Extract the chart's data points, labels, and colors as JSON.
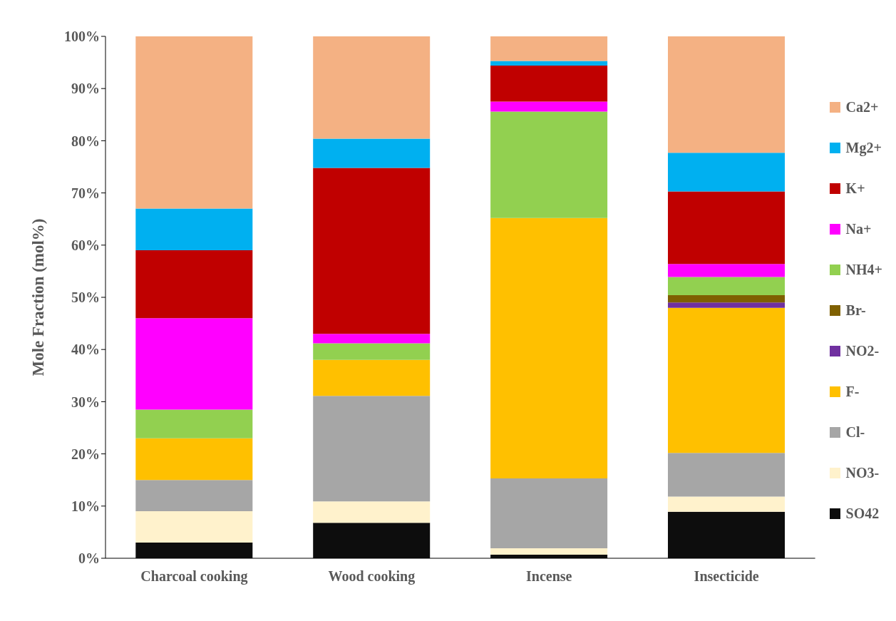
{
  "chart_data": {
    "type": "bar",
    "stacked": true,
    "ylabel": "Mole Fraction (mol%)",
    "categories": [
      "Charcoal cooking",
      "Wood cooking",
      "Incense",
      "Insecticide"
    ],
    "ylim": [
      0,
      100
    ],
    "yticks": [
      {
        "value": 0,
        "label": "0%"
      },
      {
        "value": 10,
        "label": "10%"
      },
      {
        "value": 20,
        "label": "20%"
      },
      {
        "value": 30,
        "label": "30%"
      },
      {
        "value": 40,
        "label": "40%"
      },
      {
        "value": 50,
        "label": "50%"
      },
      {
        "value": 60,
        "label": "60%"
      },
      {
        "value": 70,
        "label": "70%"
      },
      {
        "value": 80,
        "label": "80%"
      },
      {
        "value": 90,
        "label": "90%"
      },
      {
        "value": 100,
        "label": "100%"
      }
    ],
    "legend": "right",
    "grid": false,
    "series": [
      {
        "name": "SO42",
        "color": "#0d0d0d",
        "values": [
          3,
          6.8,
          0.7,
          8.9
        ]
      },
      {
        "name": "NO3-",
        "color": "#fff2cc",
        "values": [
          6,
          4.1,
          1.2,
          2.9
        ]
      },
      {
        "name": "Cl-",
        "color": "#a6a6a6",
        "values": [
          6,
          20.2,
          13.4,
          8.4
        ]
      },
      {
        "name": "F-",
        "color": "#ffc000",
        "values": [
          8,
          6.9,
          49.9,
          27.8
        ]
      },
      {
        "name": "NO2-",
        "color": "#7030a0",
        "values": [
          0,
          0,
          0,
          1
        ]
      },
      {
        "name": "Br-",
        "color": "#7f6000",
        "values": [
          0,
          0,
          0,
          1.4
        ]
      },
      {
        "name": "NH4+",
        "color": "#92d050",
        "values": [
          5.5,
          3.2,
          20.4,
          3.5
        ]
      },
      {
        "name": "Na+",
        "color": "#ff00ff",
        "values": [
          17.5,
          1.8,
          1.9,
          2.5
        ]
      },
      {
        "name": "K+",
        "color": "#c00000",
        "values": [
          13,
          31.8,
          6.9,
          13.9
        ]
      },
      {
        "name": "Mg2+",
        "color": "#00b0f0",
        "values": [
          8,
          5.6,
          0.9,
          7.4
        ]
      },
      {
        "name": "Ca2+",
        "color": "#f4b183",
        "values": [
          33,
          19.6,
          4.7,
          22.3
        ]
      }
    ]
  }
}
